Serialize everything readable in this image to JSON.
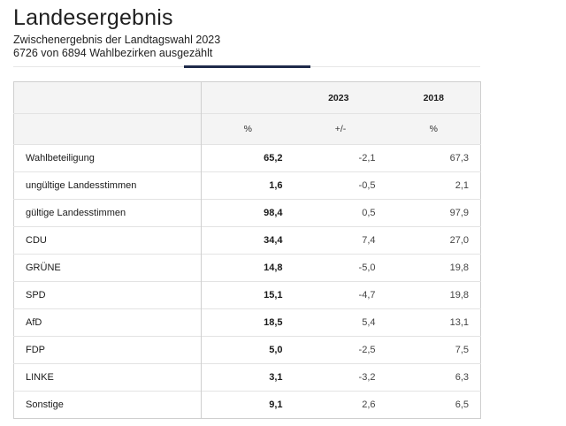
{
  "header": {
    "title": "Landesergebnis",
    "subtitle_line1": "Zwischenergebnis der Landtagswahl 2023",
    "subtitle_line2": "6726 von 6894 Wahlbezirken ausgezählt"
  },
  "table": {
    "year_current": "2023",
    "year_previous": "2018",
    "unit_percent": "%",
    "unit_change": "+/-",
    "unit_percent_prev": "%",
    "rows": [
      {
        "label": "Wahlbeteiligung",
        "pct": "65,2",
        "change": "-2,1",
        "prev": "67,3"
      },
      {
        "label": "ungültige Landesstimmen",
        "pct": "1,6",
        "change": "-0,5",
        "prev": "2,1"
      },
      {
        "label": "gültige Landesstimmen",
        "pct": "98,4",
        "change": "0,5",
        "prev": "97,9"
      },
      {
        "label": "CDU",
        "pct": "34,4",
        "change": "7,4",
        "prev": "27,0"
      },
      {
        "label": "GRÜNE",
        "pct": "14,8",
        "change": "-5,0",
        "prev": "19,8"
      },
      {
        "label": "SPD",
        "pct": "15,1",
        "change": "-4,7",
        "prev": "19,8"
      },
      {
        "label": "AfD",
        "pct": "18,5",
        "change": "5,4",
        "prev": "13,1"
      },
      {
        "label": "FDP",
        "pct": "5,0",
        "change": "-2,5",
        "prev": "7,5"
      },
      {
        "label": "LINKE",
        "pct": "3,1",
        "change": "-3,2",
        "prev": "6,3"
      },
      {
        "label": "Sonstige",
        "pct": "9,1",
        "change": "2,6",
        "prev": "6,5"
      }
    ]
  },
  "colors": {
    "tab_indicator": "#1f2a4a",
    "header_background": "#f4f4f4",
    "border": "#cfcfcf"
  }
}
